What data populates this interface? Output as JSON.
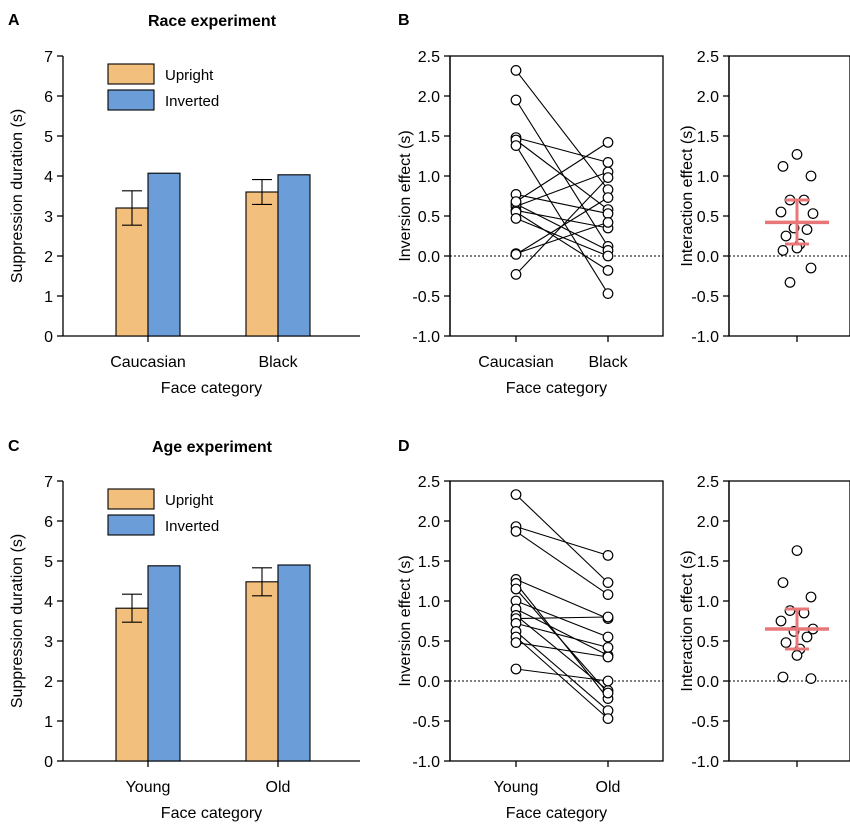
{
  "colors": {
    "upright": "#f2c07c",
    "inverted": "#6b9dd9",
    "mean_line": "#e87878",
    "axis": "#000000",
    "point_fill": "#ffffff"
  },
  "chart_data": [
    {
      "panel": "A",
      "type": "bar",
      "title": "Race experiment",
      "xlabel": "Face category",
      "ylabel": "Suppression duration (s)",
      "ylim": [
        0,
        7
      ],
      "yticks": [
        "0",
        "1",
        "2",
        "3",
        "4",
        "5",
        "6",
        "7"
      ],
      "categories": [
        "Caucasian",
        "Black"
      ],
      "legend": [
        "Upright",
        "Inverted"
      ],
      "legend_position": "top-left",
      "series": [
        {
          "name": "Upright",
          "values": [
            3.2,
            3.6
          ],
          "error": [
            0.43,
            0.31
          ]
        },
        {
          "name": "Inverted",
          "values": [
            4.07,
            4.03
          ]
        }
      ]
    },
    {
      "panel": "B",
      "type": "line",
      "xlabel": "Face category",
      "ylabel": "Inversion effect (s)",
      "ylim": [
        -1,
        2.5
      ],
      "yticks": [
        "2.5",
        "2.0",
        "1.5",
        "1.0",
        "0.5",
        "0.0",
        "-0.5",
        "-1.0"
      ],
      "categories": [
        "Caucasian",
        "Black"
      ],
      "pairs": [
        [
          2.32,
          0.83
        ],
        [
          1.95,
          0.12
        ],
        [
          1.48,
          1.17
        ],
        [
          1.45,
          0.58
        ],
        [
          1.38,
          -0.47
        ],
        [
          0.77,
          0.53
        ],
        [
          0.65,
          0.07
        ],
        [
          0.62,
          1.05
        ],
        [
          0.57,
          0.35
        ],
        [
          0.55,
          -0.18
        ],
        [
          0.47,
          0.0
        ],
        [
          0.03,
          0.42
        ],
        [
          0.02,
          0.73
        ],
        [
          -0.23,
          0.98
        ],
        [
          0.68,
          1.42
        ]
      ]
    },
    {
      "panel": "B-inset",
      "type": "scatter",
      "ylabel": "Interaction effect (s)",
      "ylim": [
        -1,
        2.5
      ],
      "yticks": [
        "2.5",
        "2.0",
        "1.5",
        "1.0",
        "0.5",
        "0.0",
        "-0.5",
        "-1.0"
      ],
      "points": [
        1.27,
        1.12,
        1.0,
        0.7,
        0.7,
        0.55,
        0.53,
        0.35,
        0.33,
        0.25,
        0.15,
        0.1,
        0.07,
        -0.15,
        -0.33
      ],
      "mean": 0.42,
      "ci": [
        0.15,
        0.7
      ]
    },
    {
      "panel": "C",
      "type": "bar",
      "title": "Age experiment",
      "xlabel": "Face category",
      "ylabel": "Suppression duration (s)",
      "ylim": [
        0,
        7
      ],
      "yticks": [
        "0",
        "1",
        "2",
        "3",
        "4",
        "5",
        "6",
        "7"
      ],
      "categories": [
        "Young",
        "Old"
      ],
      "legend": [
        "Upright",
        "Inverted"
      ],
      "legend_position": "top-left",
      "series": [
        {
          "name": "Upright",
          "values": [
            3.82,
            4.48
          ],
          "error": [
            0.35,
            0.35
          ]
        },
        {
          "name": "Inverted",
          "values": [
            4.88,
            4.9
          ]
        }
      ]
    },
    {
      "panel": "D",
      "type": "line",
      "xlabel": "Face category",
      "ylabel": "Inversion effect (s)",
      "ylim": [
        -1,
        2.5
      ],
      "yticks": [
        "2.5",
        "2.0",
        "1.5",
        "1.0",
        "0.5",
        "0.0",
        "-0.5",
        "-1.0"
      ],
      "categories": [
        "Young",
        "Old"
      ],
      "pairs": [
        [
          2.33,
          1.23
        ],
        [
          1.93,
          1.57
        ],
        [
          1.87,
          1.08
        ],
        [
          1.27,
          0.78
        ],
        [
          1.22,
          -0.22
        ],
        [
          1.0,
          0.55
        ],
        [
          0.9,
          0.32
        ],
        [
          0.82,
          -0.12
        ],
        [
          0.78,
          0.8
        ],
        [
          0.72,
          0.42
        ],
        [
          0.62,
          -0.37
        ],
        [
          0.55,
          -0.47
        ],
        [
          0.48,
          0.3
        ],
        [
          0.15,
          0.0
        ],
        [
          1.15,
          -0.15
        ]
      ]
    },
    {
      "panel": "D-inset",
      "type": "scatter",
      "ylabel": "Interaction effect (s)",
      "ylim": [
        -1,
        2.5
      ],
      "yticks": [
        "2.5",
        "2.0",
        "1.5",
        "1.0",
        "0.5",
        "0.0",
        "-0.5",
        "-1.0"
      ],
      "points": [
        1.63,
        1.23,
        1.05,
        0.88,
        0.85,
        0.75,
        0.65,
        0.62,
        0.55,
        0.48,
        0.4,
        0.32,
        0.05,
        0.03
      ],
      "mean": 0.65,
      "ci": [
        0.4,
        0.9
      ]
    }
  ]
}
